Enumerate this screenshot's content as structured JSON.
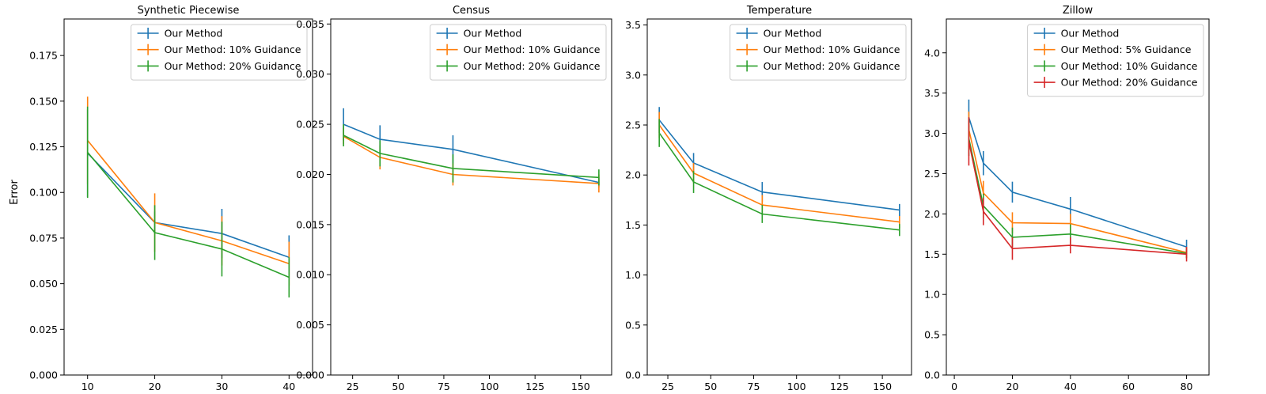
{
  "figure": {
    "ylabel": "Error"
  },
  "chart_data": [
    {
      "type": "line",
      "title": "Synthetic Piecewise",
      "xlabel": "",
      "ylabel": "Error",
      "xlim": [
        6.5,
        43.5
      ],
      "ylim": [
        0,
        0.195
      ],
      "xticks": [
        10,
        20,
        30,
        40
      ],
      "yticks": [
        0.0,
        0.025,
        0.05,
        0.075,
        0.1,
        0.125,
        0.15,
        0.175
      ],
      "ytick_labels": [
        "0.000",
        "0.025",
        "0.050",
        "0.075",
        "0.100",
        "0.125",
        "0.150",
        "0.175"
      ],
      "legend": "top-right",
      "x": [
        10,
        20,
        30,
        40
      ],
      "series": [
        {
          "name": "Our Method",
          "color": "#1f77b4",
          "values": [
            0.1215,
            0.0835,
            0.0775,
            0.0645
          ],
          "err": [
            0.024,
            0.006,
            0.0135,
            0.012
          ]
        },
        {
          "name": "Our Method: 10% Guidance",
          "color": "#ff7f0e",
          "values": [
            0.1285,
            0.0835,
            0.0735,
            0.061
          ],
          "err": [
            0.024,
            0.016,
            0.0135,
            0.012
          ]
        },
        {
          "name": "Our Method: 20% Guidance",
          "color": "#2ca02c",
          "values": [
            0.122,
            0.078,
            0.069,
            0.0535
          ],
          "err": [
            0.025,
            0.015,
            0.015,
            0.011
          ]
        }
      ]
    },
    {
      "type": "line",
      "title": "Census",
      "xlabel": "",
      "ylabel": "",
      "xlim": [
        13,
        167
      ],
      "ylim": [
        0,
        0.0355
      ],
      "xticks": [
        25,
        50,
        75,
        100,
        125,
        150
      ],
      "yticks": [
        0.0,
        0.005,
        0.01,
        0.015,
        0.02,
        0.025,
        0.03,
        0.035
      ],
      "ytick_labels": [
        "0.000",
        "0.005",
        "0.010",
        "0.015",
        "0.020",
        "0.025",
        "0.030",
        "0.035"
      ],
      "legend": "top-right",
      "x": [
        20,
        40,
        80,
        160
      ],
      "series": [
        {
          "name": "Our Method",
          "color": "#1f77b4",
          "values": [
            0.025,
            0.0235,
            0.0225,
            0.0192
          ],
          "err": [
            0.0016,
            0.0014,
            0.0014,
            0.0005
          ]
        },
        {
          "name": "Our Method: 10% Guidance",
          "color": "#ff7f0e",
          "values": [
            0.0238,
            0.0217,
            0.02,
            0.0191
          ],
          "err": [
            0.0008,
            0.0012,
            0.0011,
            0.0009
          ]
        },
        {
          "name": "Our Method: 20% Guidance",
          "color": "#2ca02c",
          "values": [
            0.0239,
            0.0221,
            0.0206,
            0.0197
          ],
          "err": [
            0.0011,
            0.0013,
            0.0014,
            0.0008
          ]
        }
      ]
    },
    {
      "type": "line",
      "title": "Temperature",
      "xlabel": "",
      "ylabel": "",
      "xlim": [
        13,
        167
      ],
      "ylim": [
        0,
        3.56
      ],
      "xticks": [
        25,
        50,
        75,
        100,
        125,
        150
      ],
      "yticks": [
        0.0,
        0.5,
        1.0,
        1.5,
        2.0,
        2.5,
        3.0,
        3.5
      ],
      "ytick_labels": [
        "0.0",
        "0.5",
        "1.0",
        "1.5",
        "2.0",
        "2.5",
        "3.0",
        "3.5"
      ],
      "legend": "top-right",
      "x": [
        20,
        40,
        80,
        160
      ],
      "series": [
        {
          "name": "Our Method",
          "color": "#1f77b4",
          "values": [
            2.55,
            2.12,
            1.83,
            1.65
          ],
          "err": [
            0.13,
            0.1,
            0.1,
            0.06
          ]
        },
        {
          "name": "Our Method: 10% Guidance",
          "color": "#ff7f0e",
          "values": [
            2.5,
            2.02,
            1.7,
            1.53
          ],
          "err": [
            0.13,
            0.1,
            0.1,
            0.06
          ]
        },
        {
          "name": "Our Method: 20% Guidance",
          "color": "#2ca02c",
          "values": [
            2.42,
            1.93,
            1.61,
            1.45
          ],
          "err": [
            0.14,
            0.11,
            0.09,
            0.06
          ]
        }
      ]
    },
    {
      "type": "line",
      "title": "Zillow",
      "xlabel": "",
      "ylabel": "",
      "xlim": [
        -2.75,
        87.75
      ],
      "ylim": [
        0,
        4.42
      ],
      "xticks": [
        0,
        20,
        40,
        60,
        80
      ],
      "yticks": [
        0.0,
        0.5,
        1.0,
        1.5,
        2.0,
        2.5,
        3.0,
        3.5,
        4.0
      ],
      "ytick_labels": [
        "0.0",
        "0.5",
        "1.0",
        "1.5",
        "2.0",
        "2.5",
        "3.0",
        "3.5",
        "4.0"
      ],
      "legend": "top-right",
      "x": [
        5,
        10,
        20,
        40,
        80
      ],
      "series": [
        {
          "name": "Our Method",
          "color": "#1f77b4",
          "values": [
            3.2,
            2.63,
            2.27,
            2.06,
            1.59
          ],
          "err": [
            0.22,
            0.15,
            0.13,
            0.15,
            0.09
          ]
        },
        {
          "name": "Our Method: 5% Guidance",
          "color": "#ff7f0e",
          "values": [
            3.05,
            2.26,
            1.89,
            1.88,
            1.52
          ],
          "err": [
            0.22,
            0.15,
            0.13,
            0.12,
            0.07
          ]
        },
        {
          "name": "Our Method: 10% Guidance",
          "color": "#2ca02c",
          "values": [
            2.94,
            2.1,
            1.71,
            1.75,
            1.51
          ],
          "err": [
            0.22,
            0.15,
            0.12,
            0.12,
            0.06
          ]
        },
        {
          "name": "Our Method: 20% Guidance",
          "color": "#d62728",
          "values": [
            2.9,
            2.03,
            1.57,
            1.61,
            1.5
          ],
          "err": [
            0.3,
            0.17,
            0.14,
            0.1,
            0.09
          ]
        }
      ]
    }
  ]
}
